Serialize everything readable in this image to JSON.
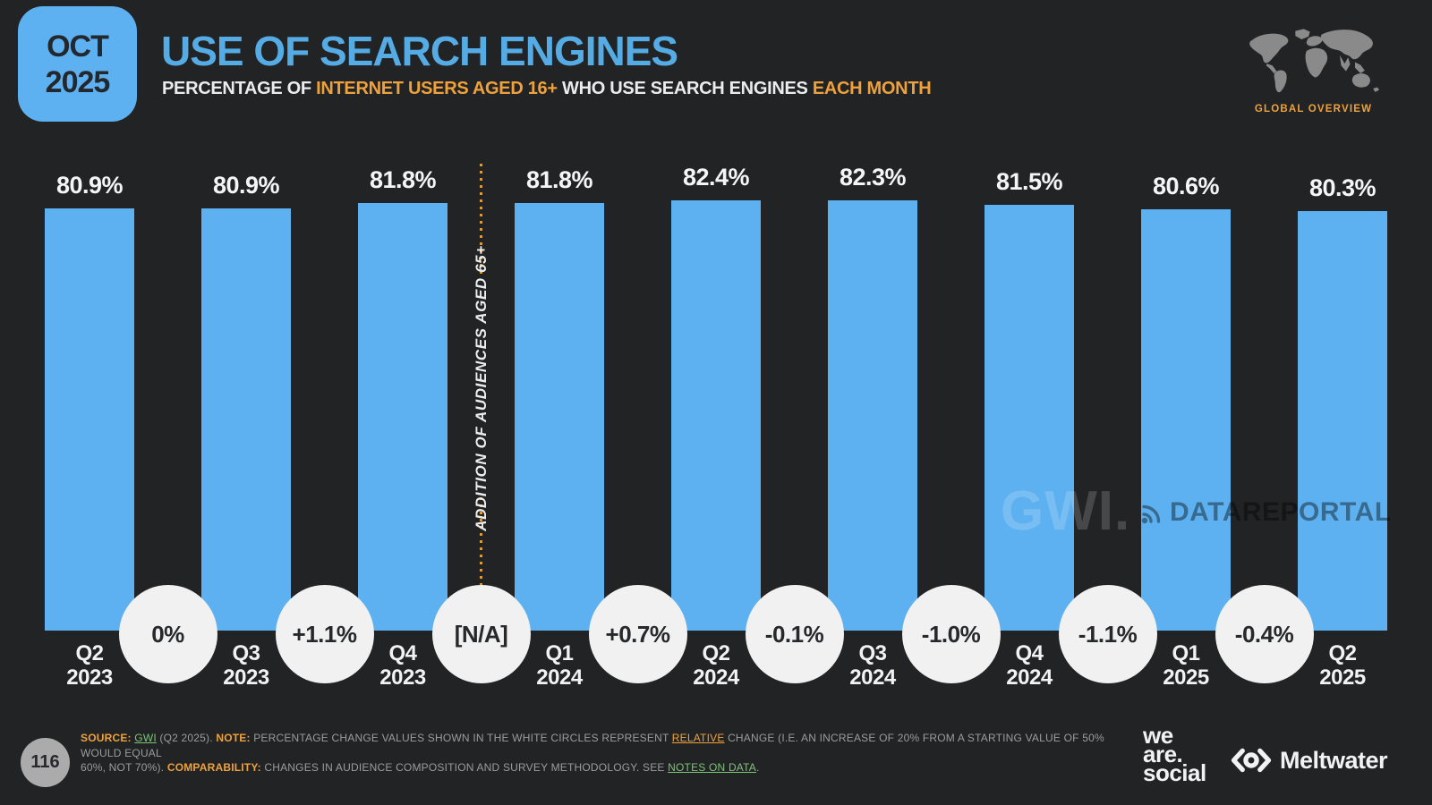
{
  "header": {
    "badge_month": "OCT",
    "badge_year": "2025",
    "title": "USE OF SEARCH ENGINES",
    "subtitle_prefix": "PERCENTAGE OF ",
    "subtitle_highlight1": "INTERNET USERS AGED 16+",
    "subtitle_mid": " WHO USE SEARCH ENGINES ",
    "subtitle_highlight2": "EACH MONTH",
    "region_label": "GLOBAL OVERVIEW"
  },
  "chart_data": {
    "type": "bar",
    "title": "USE OF SEARCH ENGINES",
    "categories": [
      "Q2 2023",
      "Q3 2023",
      "Q4 2023",
      "Q1 2024",
      "Q2 2024",
      "Q3 2024",
      "Q4 2024",
      "Q1 2025",
      "Q2 2025"
    ],
    "values": [
      80.9,
      80.9,
      81.8,
      81.8,
      82.4,
      82.3,
      81.5,
      80.6,
      80.3
    ],
    "value_labels": [
      "80.9%",
      "80.9%",
      "81.8%",
      "81.8%",
      "82.4%",
      "82.3%",
      "81.5%",
      "80.6%",
      "80.3%"
    ],
    "change_labels": [
      "0%",
      "+1.1%",
      "[N/A]",
      "+0.7%",
      "-0.1%",
      "-1.0%",
      "-1.1%",
      "-0.4%"
    ],
    "annotation": "ADDITION OF AUDIENCES AGED 65+",
    "annotation_after_index": 2,
    "xlabel": "",
    "ylabel": "",
    "ylim": [
      0,
      100
    ],
    "grid": false,
    "legend": "none",
    "bar_color": "#5EB1F0"
  },
  "watermarks": {
    "gwi": "GWI.",
    "datareportal": "DATAREPORTAL"
  },
  "footer": {
    "page_number": "116",
    "note_runs": [
      {
        "text": "SOURCE: ",
        "style": "orange-bold"
      },
      {
        "text": "GWI",
        "style": "green-link"
      },
      {
        "text": " (Q2 2025). ",
        "style": "gray"
      },
      {
        "text": "NOTE: ",
        "style": "orange-bold"
      },
      {
        "text": "PERCENTAGE CHANGE VALUES SHOWN IN THE WHITE CIRCLES REPRESENT ",
        "style": "gray"
      },
      {
        "text": "RELATIVE",
        "style": "orange-link"
      },
      {
        "text": " CHANGE (I.E. AN INCREASE OF 20% FROM A STARTING VALUE OF 50% WOULD EQUAL",
        "style": "gray"
      },
      {
        "br": true
      },
      {
        "text": "60%, NOT 70%). ",
        "style": "gray"
      },
      {
        "text": "COMPARABILITY: ",
        "style": "orange-bold"
      },
      {
        "text": "CHANGES IN AUDIENCE COMPOSITION AND SURVEY METHODOLOGY. SEE ",
        "style": "gray"
      },
      {
        "text": "NOTES ON DATA",
        "style": "green-link"
      },
      {
        "text": ".",
        "style": "gray"
      }
    ],
    "we_are_social_lines": [
      "we",
      "are.",
      "social"
    ],
    "meltwater_label": "Meltwater"
  },
  "colors": {
    "background": "#222325",
    "bar_blue": "#5EB1F0",
    "title_blue": "#55ABE4",
    "accent_orange": "#EFA13B",
    "link_green": "#7CC577",
    "circle_fill": "#F1F1F1"
  }
}
